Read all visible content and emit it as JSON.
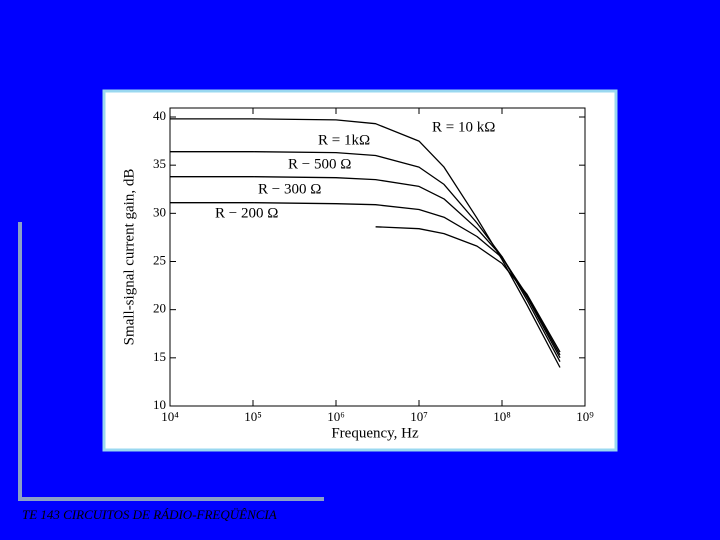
{
  "chart_data": {
    "type": "line",
    "x_label": "Frequency, Hz",
    "y_label": "Small-signal current gain, dB",
    "x": [
      10000,
      100000,
      1000000,
      3000000,
      10000000,
      20000000,
      50000000,
      100000000,
      200000000,
      500000000
    ],
    "series": [
      {
        "name": "R = 10 kΩ",
        "color": "#000000",
        "values": [
          39.8,
          39.8,
          39.7,
          39.3,
          37.5,
          34.8,
          29.5,
          25.2,
          20.5,
          14.0
        ]
      },
      {
        "name": "R = 1kΩ",
        "color": "#000000",
        "values": [
          36.4,
          36.4,
          36.3,
          36.0,
          34.8,
          33.0,
          29.0,
          25.5,
          21.0,
          14.6
        ]
      },
      {
        "name": "R − 500  Ω",
        "color": "#000000",
        "values": [
          33.8,
          33.8,
          33.7,
          33.5,
          32.8,
          31.5,
          28.4,
          25.5,
          21.3,
          15.0
        ]
      },
      {
        "name": "R − 300  Ω",
        "color": "#000000",
        "values": [
          31.1,
          31.1,
          31.0,
          30.9,
          30.4,
          29.6,
          27.6,
          25.4,
          21.5,
          15.3
        ]
      },
      {
        "name": "R − 200  Ω",
        "color": "#000000",
        "values": [
          null,
          null,
          null,
          28.6,
          28.4,
          27.9,
          26.6,
          24.8,
          21.6,
          15.6
        ]
      }
    ],
    "log_x": true,
    "xlim": [
      10000,
      1000000000
    ],
    "xticks": [
      {
        "value": 10000,
        "label": "10⁴"
      },
      {
        "value": 100000,
        "label": "10⁵"
      },
      {
        "value": 1000000,
        "label": "10⁶"
      },
      {
        "value": 10000000,
        "label": "10⁷"
      },
      {
        "value": 100000000,
        "label": "10⁸"
      },
      {
        "value": 1000000000,
        "label": "10⁹"
      }
    ],
    "ylim": [
      10,
      40
    ],
    "yticks": [
      10,
      15,
      20,
      25,
      30,
      35,
      40
    ]
  },
  "footer": "TE 143 CIRCUITOS DE RÁDIO-FREQÜÊNCIA"
}
